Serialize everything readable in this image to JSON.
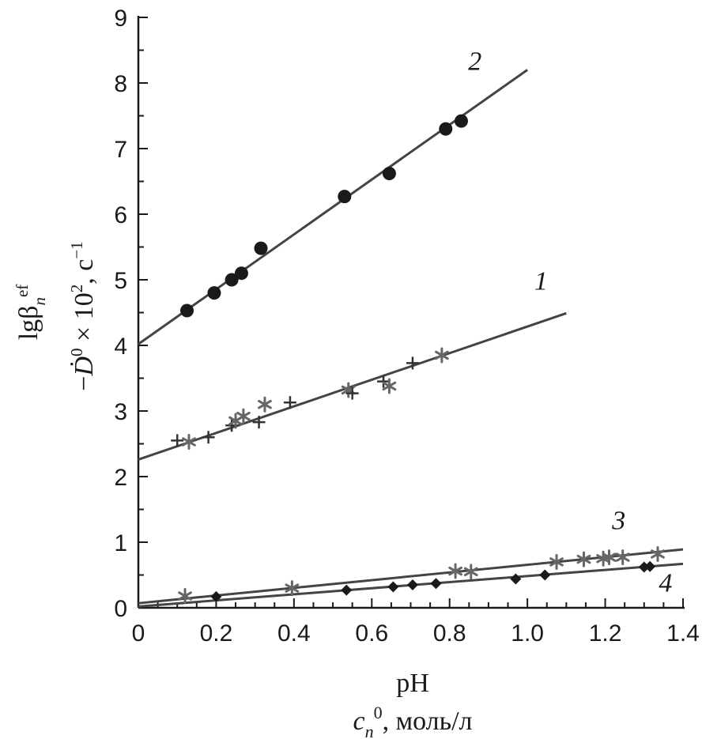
{
  "chart_data": {
    "type": "scatter",
    "title": "",
    "xlabel": "pH",
    "xlabel_secondary": "c_n^0, моль/л",
    "ylabel": "lgβ_n^ef",
    "ylabel_secondary": "−Ḋ^0 × 10^2, с^−1",
    "xlim": [
      0,
      1.4
    ],
    "ylim": [
      0,
      9
    ],
    "xticks": [
      "0",
      "0.2",
      "0.4",
      "0.6",
      "0.8",
      "1.0",
      "1.2",
      "1.4"
    ],
    "yticks": [
      "0",
      "1",
      "2",
      "3",
      "4",
      "5",
      "6",
      "7",
      "8",
      "9"
    ],
    "grid": false,
    "series": [
      {
        "name": "1",
        "points": [
          {
            "x": 0.1,
            "y": 2.55,
            "marker": "plus"
          },
          {
            "x": 0.13,
            "y": 2.53,
            "marker": "star"
          },
          {
            "x": 0.18,
            "y": 2.6,
            "marker": "plus"
          },
          {
            "x": 0.24,
            "y": 2.78,
            "marker": "plus"
          },
          {
            "x": 0.25,
            "y": 2.85,
            "marker": "star"
          },
          {
            "x": 0.27,
            "y": 2.92,
            "marker": "star"
          },
          {
            "x": 0.31,
            "y": 2.83,
            "marker": "plus"
          },
          {
            "x": 0.325,
            "y": 3.1,
            "marker": "star"
          },
          {
            "x": 0.39,
            "y": 3.13,
            "marker": "plus"
          },
          {
            "x": 0.54,
            "y": 3.32,
            "marker": "star"
          },
          {
            "x": 0.55,
            "y": 3.27,
            "marker": "plus"
          },
          {
            "x": 0.63,
            "y": 3.45,
            "marker": "plus"
          },
          {
            "x": 0.645,
            "y": 3.38,
            "marker": "star"
          },
          {
            "x": 0.705,
            "y": 3.73,
            "marker": "plus"
          },
          {
            "x": 0.78,
            "y": 3.85,
            "marker": "star"
          }
        ],
        "fit": {
          "x": [
            0,
            1.1
          ],
          "y": [
            2.26,
            4.49
          ]
        },
        "label_pos": {
          "x": 1.035,
          "y": 4.85
        }
      },
      {
        "name": "2",
        "points": [
          {
            "x": 0.125,
            "y": 4.53,
            "marker": "circle"
          },
          {
            "x": 0.195,
            "y": 4.8,
            "marker": "circle"
          },
          {
            "x": 0.24,
            "y": 5.0,
            "marker": "circle"
          },
          {
            "x": 0.265,
            "y": 5.1,
            "marker": "circle"
          },
          {
            "x": 0.315,
            "y": 5.48,
            "marker": "circle"
          },
          {
            "x": 0.53,
            "y": 6.27,
            "marker": "circle"
          },
          {
            "x": 0.645,
            "y": 6.62,
            "marker": "circle"
          },
          {
            "x": 0.79,
            "y": 7.3,
            "marker": "circle"
          },
          {
            "x": 0.83,
            "y": 7.42,
            "marker": "circle"
          }
        ],
        "fit": {
          "x": [
            0,
            1.0
          ],
          "y": [
            4.02,
            8.2
          ]
        },
        "label_pos": {
          "x": 0.865,
          "y": 8.2
        }
      },
      {
        "name": "3",
        "points": [
          {
            "x": 0.12,
            "y": 0.18,
            "marker": "star"
          },
          {
            "x": 0.395,
            "y": 0.3,
            "marker": "star"
          },
          {
            "x": 0.815,
            "y": 0.56,
            "marker": "star"
          },
          {
            "x": 0.855,
            "y": 0.55,
            "marker": "star"
          },
          {
            "x": 1.075,
            "y": 0.7,
            "marker": "star"
          },
          {
            "x": 1.145,
            "y": 0.74,
            "marker": "star"
          },
          {
            "x": 1.195,
            "y": 0.75,
            "marker": "star"
          },
          {
            "x": 1.21,
            "y": 0.77,
            "marker": "star"
          },
          {
            "x": 1.245,
            "y": 0.77,
            "marker": "star"
          },
          {
            "x": 1.335,
            "y": 0.82,
            "marker": "star"
          }
        ],
        "fit": {
          "x": [
            0,
            1.4
          ],
          "y": [
            0.07,
            0.89
          ]
        },
        "label_pos": {
          "x": 1.235,
          "y": 1.2
        }
      },
      {
        "name": "4",
        "points": [
          {
            "x": 0.2,
            "y": 0.17,
            "marker": "diamond"
          },
          {
            "x": 0.535,
            "y": 0.27,
            "marker": "diamond"
          },
          {
            "x": 0.655,
            "y": 0.32,
            "marker": "diamond"
          },
          {
            "x": 0.705,
            "y": 0.35,
            "marker": "diamond"
          },
          {
            "x": 0.765,
            "y": 0.37,
            "marker": "diamond"
          },
          {
            "x": 0.97,
            "y": 0.44,
            "marker": "diamond"
          },
          {
            "x": 1.045,
            "y": 0.5,
            "marker": "diamond"
          },
          {
            "x": 1.3,
            "y": 0.62,
            "marker": "diamond"
          },
          {
            "x": 1.315,
            "y": 0.63,
            "marker": "diamond"
          }
        ],
        "fit": {
          "x": [
            0,
            1.4
          ],
          "y": [
            0.02,
            0.67
          ]
        },
        "label_pos": {
          "x": 1.355,
          "y": 0.25
        }
      }
    ]
  },
  "colors": {
    "line": "#444444",
    "axis": "#1a1a1a",
    "circle": "#1a1a1a",
    "diamond": "#1a1a1a",
    "plus": "#333333",
    "star": "#666666"
  }
}
